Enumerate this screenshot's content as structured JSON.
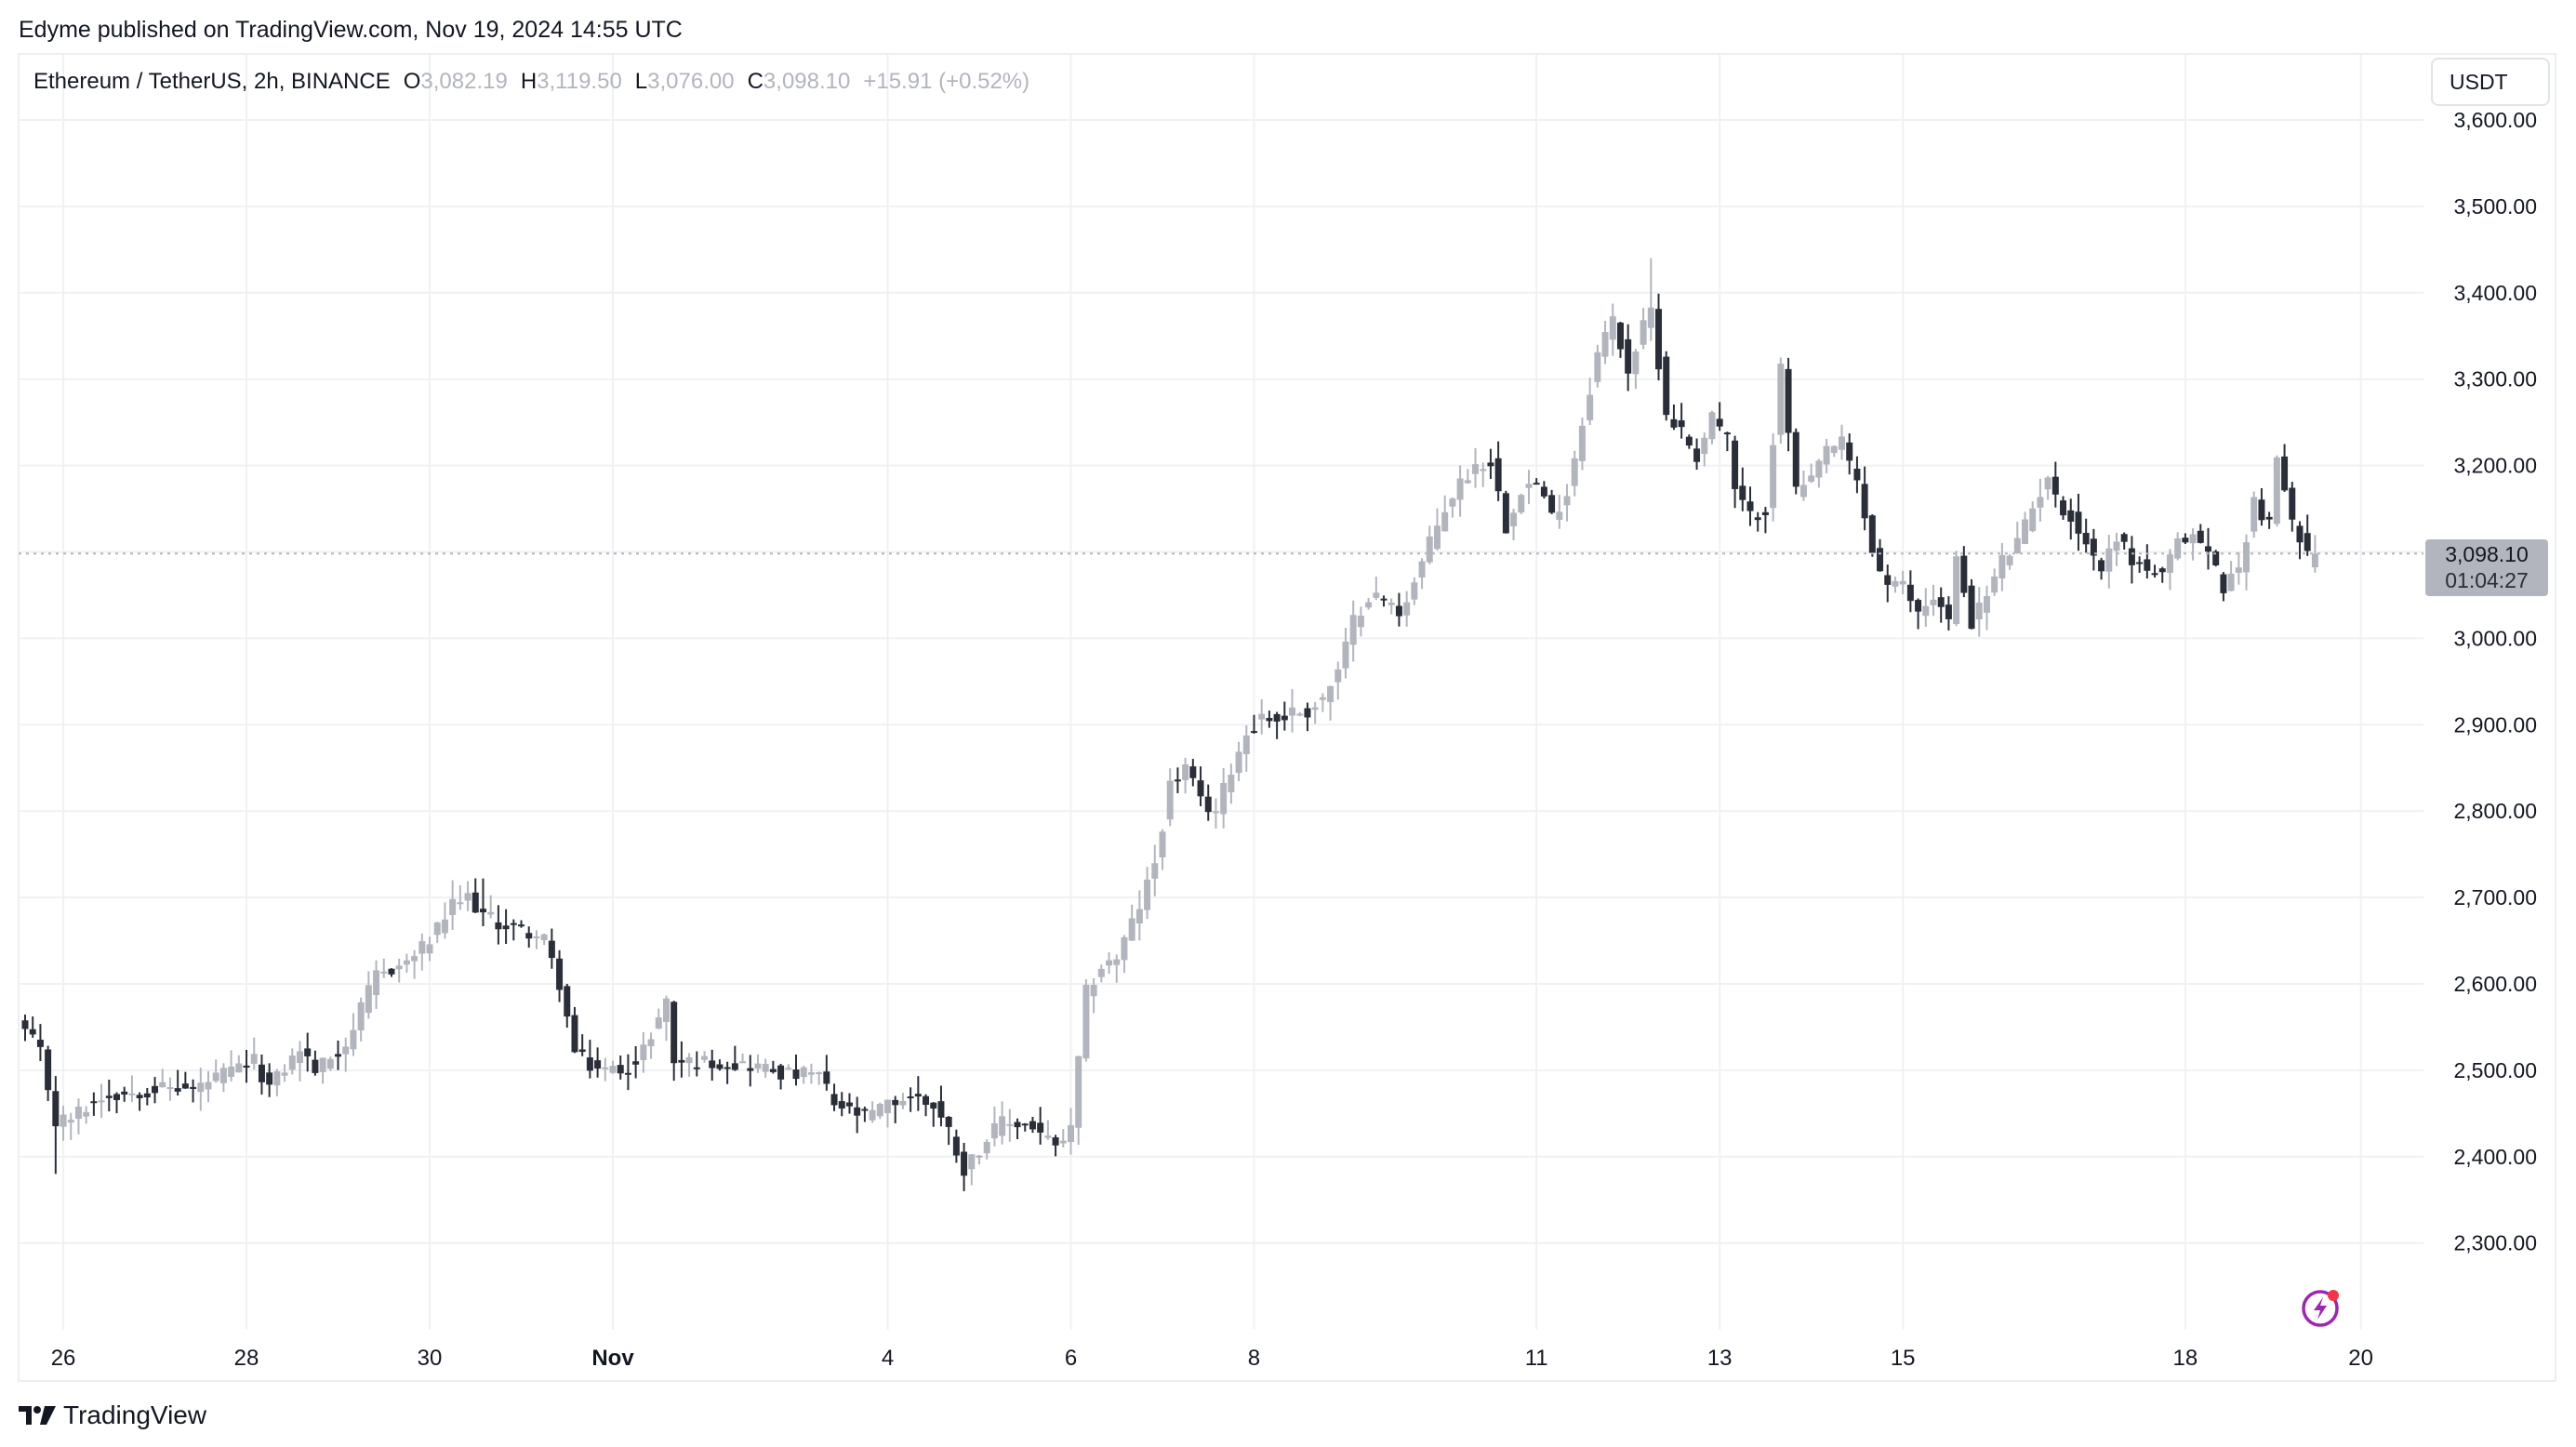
{
  "header": {
    "publisher_line": "Edyme published on TradingView.com, Nov 19, 2024 14:55 UTC"
  },
  "legend": {
    "symbol": "Ethereum / TetherUS, 2h, BINANCE",
    "open_label": "O",
    "open": "3,082.19",
    "high_label": "H",
    "high": "3,119.50",
    "low_label": "L",
    "low": "3,076.00",
    "close_label": "C",
    "close": "3,098.10",
    "change": "+15.91 (+0.52%)"
  },
  "currency_button": "USDT",
  "last_price": {
    "price": "3,098.10",
    "countdown": "01:04:27"
  },
  "brand": {
    "name": "TradingView"
  },
  "colors": {
    "up": "#b2b5be",
    "down": "#2a2e39",
    "grid": "#f0f1f4",
    "axis_text": "#131722",
    "price_line": "#b2b5be",
    "bolt": "#9c27b0",
    "bolt_dot": "#f23645"
  },
  "chart_data": {
    "type": "candlestick",
    "title": "Ethereum / TetherUS, 2h, BINANCE",
    "xlabel": "",
    "ylabel": "USDT",
    "interval": "2h",
    "grid": true,
    "ylim": [
      2200,
      3660
    ],
    "y_ticks": [
      "3,600.00",
      "3,500.00",
      "3,400.00",
      "3,300.00",
      "3,200.00",
      "3,100.00",
      "3,000.00",
      "2,900.00",
      "2,800.00",
      "2,700.00",
      "2,600.00",
      "2,500.00",
      "2,400.00",
      "2,300.00"
    ],
    "y_tick_values": [
      3600,
      3500,
      3400,
      3300,
      3200,
      3100,
      3000,
      2900,
      2800,
      2700,
      2600,
      2500,
      2400,
      2300
    ],
    "x_ticks": [
      {
        "label": "26",
        "index": 5,
        "bold": false
      },
      {
        "label": "28",
        "index": 29,
        "bold": false
      },
      {
        "label": "30",
        "index": 53,
        "bold": false
      },
      {
        "label": "Nov",
        "index": 77,
        "bold": true
      },
      {
        "label": "4",
        "index": 113,
        "bold": false
      },
      {
        "label": "6",
        "index": 137,
        "bold": false
      },
      {
        "label": "8",
        "index": 161,
        "bold": false
      },
      {
        "label": "11",
        "index": 198,
        "bold": false
      },
      {
        "label": "13",
        "index": 222,
        "bold": false
      },
      {
        "label": "15",
        "index": 246,
        "bold": false
      },
      {
        "label": "18",
        "index": 283,
        "bold": false
      },
      {
        "label": "20",
        "index": 306,
        "bold": false
      }
    ],
    "candle_count": 301,
    "close_path": [
      [
        0,
        2545
      ],
      [
        2,
        2520
      ],
      [
        4,
        2440
      ],
      [
        6,
        2445
      ],
      [
        10,
        2470
      ],
      [
        14,
        2475
      ],
      [
        18,
        2480
      ],
      [
        22,
        2478
      ],
      [
        26,
        2495
      ],
      [
        30,
        2510
      ],
      [
        32,
        2480
      ],
      [
        36,
        2525
      ],
      [
        38,
        2500
      ],
      [
        42,
        2530
      ],
      [
        46,
        2610
      ],
      [
        50,
        2625
      ],
      [
        53,
        2650
      ],
      [
        56,
        2690
      ],
      [
        58,
        2700
      ],
      [
        60,
        2680
      ],
      [
        62,
        2670
      ],
      [
        66,
        2660
      ],
      [
        68,
        2650
      ],
      [
        70,
        2600
      ],
      [
        72,
        2520
      ],
      [
        74,
        2505
      ],
      [
        76,
        2500
      ],
      [
        80,
        2505
      ],
      [
        84,
        2580
      ],
      [
        85,
        2510
      ],
      [
        90,
        2510
      ],
      [
        96,
        2505
      ],
      [
        100,
        2495
      ],
      [
        104,
        2495
      ],
      [
        106,
        2460
      ],
      [
        110,
        2445
      ],
      [
        113,
        2460
      ],
      [
        116,
        2470
      ],
      [
        119,
        2460
      ],
      [
        121,
        2430
      ],
      [
        123,
        2385
      ],
      [
        125,
        2410
      ],
      [
        128,
        2440
      ],
      [
        132,
        2435
      ],
      [
        135,
        2410
      ],
      [
        137,
        2430
      ],
      [
        139,
        2590
      ],
      [
        141,
        2620
      ],
      [
        143,
        2630
      ],
      [
        146,
        2690
      ],
      [
        148,
        2740
      ],
      [
        150,
        2830
      ],
      [
        152,
        2850
      ],
      [
        154,
        2810
      ],
      [
        156,
        2800
      ],
      [
        158,
        2850
      ],
      [
        160,
        2890
      ],
      [
        162,
        2910
      ],
      [
        164,
        2905
      ],
      [
        166,
        2915
      ],
      [
        168,
        2915
      ],
      [
        170,
        2930
      ],
      [
        172,
        2960
      ],
      [
        174,
        3020
      ],
      [
        176,
        3050
      ],
      [
        178,
        3045
      ],
      [
        180,
        3030
      ],
      [
        182,
        3065
      ],
      [
        184,
        3110
      ],
      [
        186,
        3150
      ],
      [
        188,
        3180
      ],
      [
        190,
        3200
      ],
      [
        192,
        3205
      ],
      [
        194,
        3130
      ],
      [
        196,
        3175
      ],
      [
        198,
        3180
      ],
      [
        200,
        3140
      ],
      [
        202,
        3170
      ],
      [
        204,
        3250
      ],
      [
        206,
        3330
      ],
      [
        208,
        3370
      ],
      [
        210,
        3310
      ],
      [
        212,
        3360
      ],
      [
        213,
        3380
      ],
      [
        215,
        3260
      ],
      [
        217,
        3240
      ],
      [
        219,
        3210
      ],
      [
        221,
        3260
      ],
      [
        223,
        3230
      ],
      [
        224,
        3170
      ],
      [
        226,
        3140
      ],
      [
        228,
        3150
      ],
      [
        230,
        3310
      ],
      [
        232,
        3170
      ],
      [
        234,
        3180
      ],
      [
        236,
        3220
      ],
      [
        238,
        3225
      ],
      [
        240,
        3180
      ],
      [
        242,
        3100
      ],
      [
        244,
        3060
      ],
      [
        246,
        3060
      ],
      [
        248,
        3030
      ],
      [
        250,
        3050
      ],
      [
        252,
        3020
      ],
      [
        253,
        3090
      ],
      [
        255,
        3020
      ],
      [
        257,
        3050
      ],
      [
        259,
        3090
      ],
      [
        261,
        3110
      ],
      [
        263,
        3150
      ],
      [
        265,
        3190
      ],
      [
        266,
        3160
      ],
      [
        268,
        3140
      ],
      [
        270,
        3110
      ],
      [
        272,
        3080
      ],
      [
        274,
        3120
      ],
      [
        276,
        3090
      ],
      [
        278,
        3080
      ],
      [
        280,
        3070
      ],
      [
        282,
        3110
      ],
      [
        284,
        3120
      ],
      [
        286,
        3100
      ],
      [
        288,
        3060
      ],
      [
        290,
        3080
      ],
      [
        292,
        3160
      ],
      [
        294,
        3130
      ],
      [
        295,
        3210
      ],
      [
        297,
        3130
      ],
      [
        299,
        3110
      ],
      [
        300,
        3098
      ]
    ],
    "notable": {
      "high": {
        "index": 213,
        "price": 3440
      },
      "low": {
        "index": 123,
        "price": 2360
      },
      "last": {
        "index": 300,
        "open": 3082.19,
        "high": 3119.5,
        "low": 3076.0,
        "close": 3098.1
      }
    }
  }
}
